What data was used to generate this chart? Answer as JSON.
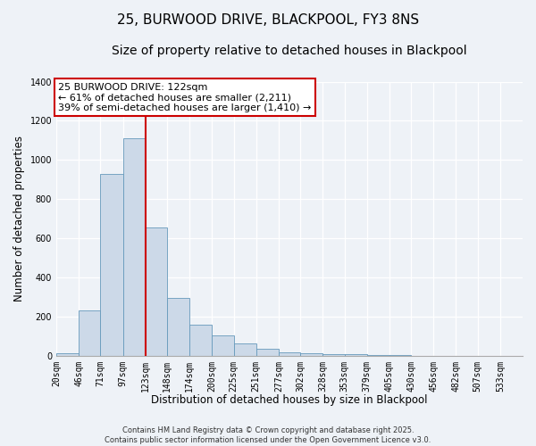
{
  "title": "25, BURWOOD DRIVE, BLACKPOOL, FY3 8NS",
  "subtitle": "Size of property relative to detached houses in Blackpool",
  "xlabel": "Distribution of detached houses by size in Blackpool",
  "ylabel": "Number of detached properties",
  "bin_labels": [
    "20sqm",
    "46sqm",
    "71sqm",
    "97sqm",
    "123sqm",
    "148sqm",
    "174sqm",
    "200sqm",
    "225sqm",
    "251sqm",
    "277sqm",
    "302sqm",
    "328sqm",
    "353sqm",
    "379sqm",
    "405sqm",
    "430sqm",
    "456sqm",
    "482sqm",
    "507sqm",
    "533sqm"
  ],
  "bin_edges": [
    20,
    46,
    71,
    97,
    123,
    148,
    174,
    200,
    225,
    251,
    277,
    302,
    328,
    353,
    379,
    405,
    430,
    456,
    482,
    507,
    533
  ],
  "bar_heights": [
    15,
    232,
    930,
    1110,
    655,
    295,
    160,
    105,
    65,
    35,
    20,
    15,
    10,
    10,
    5,
    3,
    2,
    0,
    0,
    2,
    0
  ],
  "bar_color": "#ccd9e8",
  "bar_edge_color": "#6699bb",
  "vline_x": 123,
  "vline_color": "#cc0000",
  "annotation_title": "25 BURWOOD DRIVE: 122sqm",
  "annotation_line1": "← 61% of detached houses are smaller (2,211)",
  "annotation_line2": "39% of semi-detached houses are larger (1,410) →",
  "annotation_box_color": "#ffffff",
  "annotation_box_edge": "#cc0000",
  "ylim": [
    0,
    1400
  ],
  "yticks": [
    0,
    200,
    400,
    600,
    800,
    1000,
    1200,
    1400
  ],
  "bg_color": "#eef2f7",
  "footer1": "Contains HM Land Registry data © Crown copyright and database right 2025.",
  "footer2": "Contains public sector information licensed under the Open Government Licence v3.0.",
  "title_fontsize": 11,
  "subtitle_fontsize": 10,
  "axis_label_fontsize": 8.5,
  "tick_fontsize": 7,
  "annotation_fontsize": 8
}
